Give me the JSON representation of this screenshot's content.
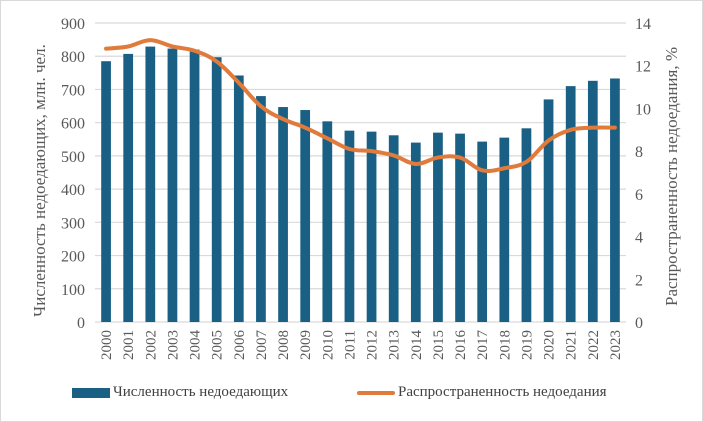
{
  "chart_data": {
    "type": "bar+line",
    "title": "",
    "categories": [
      "2000",
      "2001",
      "2002",
      "2003",
      "2004",
      "2005",
      "2006",
      "2007",
      "2008",
      "2009",
      "2010",
      "2011",
      "2012",
      "2013",
      "2014",
      "2015",
      "2016",
      "2017",
      "2018",
      "2019",
      "2020",
      "2021",
      "2022",
      "2023"
    ],
    "series": [
      {
        "name": "Численность недоедающих",
        "type": "bar",
        "axis": "left",
        "color": "#1a5f84",
        "values": [
          785,
          807,
          829,
          823,
          820,
          797,
          742,
          680,
          647,
          638,
          604,
          576,
          573,
          562,
          540,
          570,
          567,
          543,
          555,
          583,
          670,
          710,
          726,
          733
        ]
      },
      {
        "name": "Распространенность недоедания",
        "type": "line",
        "axis": "right",
        "color": "#e07b3c",
        "values": [
          12.8,
          12.9,
          13.2,
          12.9,
          12.7,
          12.2,
          11.2,
          10.1,
          9.5,
          9.1,
          8.6,
          8.1,
          8.0,
          7.8,
          7.4,
          7.7,
          7.7,
          7.1,
          7.2,
          7.5,
          8.5,
          9.0,
          9.1,
          9.1
        ]
      }
    ],
    "ylabel": "Численность недоедающих, млн. чел.",
    "y2label": "Распространенность недоедания, %",
    "xlabel": "",
    "ylim": [
      0,
      900
    ],
    "y2lim": [
      0,
      14
    ],
    "yticks": [
      0,
      100,
      200,
      300,
      400,
      500,
      600,
      700,
      800,
      900
    ],
    "y2ticks": [
      0,
      2,
      4,
      6,
      8,
      10,
      12,
      14
    ],
    "grid": true,
    "legend_position": "bottom"
  },
  "legend": {
    "bar_label": "Численность недоедающих",
    "line_label": "Распространенность недоедания"
  }
}
